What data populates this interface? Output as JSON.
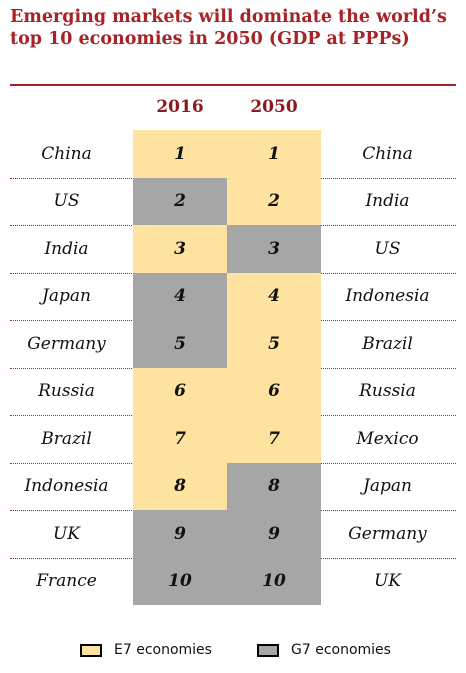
{
  "chart_data": {
    "type": "table",
    "title": "Emerging markets will dominate the world’s top 10 economies in 2050 (GDP at PPPs)",
    "columns": [
      "2016",
      "2050"
    ],
    "rows": [
      {
        "rank": "1",
        "country_2016": "China",
        "group_2016": "E7",
        "country_2050": "China",
        "group_2050": "E7"
      },
      {
        "rank": "2",
        "country_2016": "US",
        "group_2016": "G7",
        "country_2050": "India",
        "group_2050": "E7"
      },
      {
        "rank": "3",
        "country_2016": "India",
        "group_2016": "E7",
        "country_2050": "US",
        "group_2050": "G7"
      },
      {
        "rank": "4",
        "country_2016": "Japan",
        "group_2016": "G7",
        "country_2050": "Indonesia",
        "group_2050": "E7"
      },
      {
        "rank": "5",
        "country_2016": "Germany",
        "group_2016": "G7",
        "country_2050": "Brazil",
        "group_2050": "E7"
      },
      {
        "rank": "6",
        "country_2016": "Russia",
        "group_2016": "E7",
        "country_2050": "Russia",
        "group_2050": "E7"
      },
      {
        "rank": "7",
        "country_2016": "Brazil",
        "group_2016": "E7",
        "country_2050": "Mexico",
        "group_2050": "E7"
      },
      {
        "rank": "8",
        "country_2016": "Indonesia",
        "group_2016": "E7",
        "country_2050": "Japan",
        "group_2050": "G7"
      },
      {
        "rank": "9",
        "country_2016": "UK",
        "group_2016": "G7",
        "country_2050": "Germany",
        "group_2050": "G7"
      },
      {
        "rank": "10",
        "country_2016": "France",
        "group_2016": "G7",
        "country_2050": "UK",
        "group_2050": "G7"
      }
    ],
    "legend": [
      {
        "group": "E7",
        "label": "E7 economies",
        "color": "#fde39f"
      },
      {
        "group": "G7",
        "label": "G7 economies",
        "color": "#a6a6a6"
      }
    ]
  },
  "colors": {
    "title": "#a82327",
    "E7": "#fde39f",
    "G7": "#a6a6a6"
  }
}
